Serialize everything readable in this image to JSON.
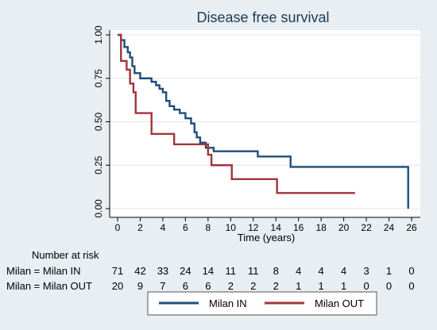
{
  "chart_data": {
    "type": "line",
    "title": "Disease free survival",
    "xlabel": "Time (years)",
    "ylabel": "",
    "xlim": [
      0,
      26
    ],
    "ylim": [
      0,
      1
    ],
    "x_ticks": [
      0,
      2,
      4,
      6,
      8,
      10,
      12,
      14,
      16,
      18,
      20,
      22,
      24,
      26
    ],
    "y_ticks": [
      0.0,
      0.25,
      0.5,
      0.75,
      1.0
    ],
    "y_tick_labels": [
      "0.00",
      "0.25",
      "0.50",
      "0.75",
      "1.00"
    ],
    "grid": true,
    "legend_position": "bottom",
    "series": [
      {
        "name": "Milan IN",
        "color": "#1f4e79",
        "step_points": [
          [
            0,
            1.0
          ],
          [
            0.3,
            0.97
          ],
          [
            0.6,
            0.93
          ],
          [
            0.9,
            0.9
          ],
          [
            1.1,
            0.87
          ],
          [
            1.3,
            0.82
          ],
          [
            1.5,
            0.78
          ],
          [
            2.0,
            0.75
          ],
          [
            3.0,
            0.73
          ],
          [
            3.4,
            0.71
          ],
          [
            3.7,
            0.69
          ],
          [
            4.0,
            0.67
          ],
          [
            4.3,
            0.62
          ],
          [
            4.6,
            0.59
          ],
          [
            5.0,
            0.57
          ],
          [
            5.5,
            0.55
          ],
          [
            6.0,
            0.52
          ],
          [
            6.5,
            0.49
          ],
          [
            6.8,
            0.44
          ],
          [
            7.0,
            0.41
          ],
          [
            7.3,
            0.38
          ],
          [
            7.8,
            0.35
          ],
          [
            8.0,
            0.35
          ],
          [
            8.5,
            0.33
          ],
          [
            10.0,
            0.33
          ],
          [
            12.4,
            0.3
          ],
          [
            15.3,
            0.24
          ],
          [
            25.7,
            0.24
          ],
          [
            25.7,
            0.0
          ]
        ]
      },
      {
        "name": "Milan OUT",
        "color": "#a3343b",
        "step_points": [
          [
            0,
            1.0
          ],
          [
            0.3,
            0.85
          ],
          [
            0.8,
            0.8
          ],
          [
            1.1,
            0.72
          ],
          [
            1.4,
            0.67
          ],
          [
            1.6,
            0.55
          ],
          [
            3.0,
            0.43
          ],
          [
            5.0,
            0.37
          ],
          [
            7.6,
            0.37
          ],
          [
            8.0,
            0.31
          ],
          [
            8.3,
            0.25
          ],
          [
            10.0,
            0.25
          ],
          [
            10.1,
            0.17
          ],
          [
            14.1,
            0.09
          ],
          [
            21.0,
            0.09
          ]
        ]
      }
    ],
    "risk_table": {
      "header": "Number at risk",
      "rows": [
        {
          "label": "Milan = Milan IN",
          "values": [
            "71",
            "42",
            "33",
            "24",
            "14",
            "11",
            "11",
            "8",
            "4",
            "4",
            "4",
            "3",
            "1",
            "0"
          ]
        },
        {
          "label": "Milan = Milan OUT",
          "values": [
            "20",
            "9",
            "7",
            "6",
            "6",
            "2",
            "2",
            "2",
            "1",
            "1",
            "1",
            "0",
            "0",
            "0"
          ]
        }
      ]
    }
  }
}
